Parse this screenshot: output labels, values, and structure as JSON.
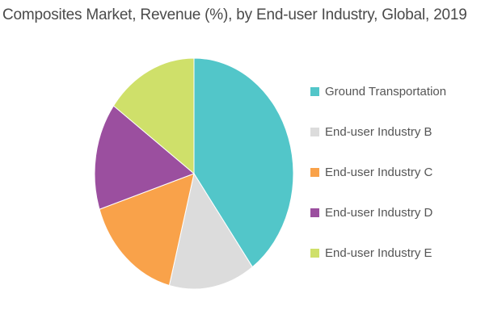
{
  "chart_data": {
    "type": "pie",
    "title": "Composites Market, Revenue (%), by End-user Industry, Global, 2019",
    "legend_position": "right",
    "categories": [
      "Ground Transportation",
      "End-user Industry B",
      "End-user Industry C",
      "End-user Industry D",
      "End-user Industry E"
    ],
    "values": [
      40,
      14,
      16,
      15,
      15
    ],
    "colors": [
      "#52c6c9",
      "#dcdcdc",
      "#f9a24a",
      "#9b4f9f",
      "#cfe06a"
    ],
    "start_angle_deg": 0,
    "direction": "clockwise"
  }
}
